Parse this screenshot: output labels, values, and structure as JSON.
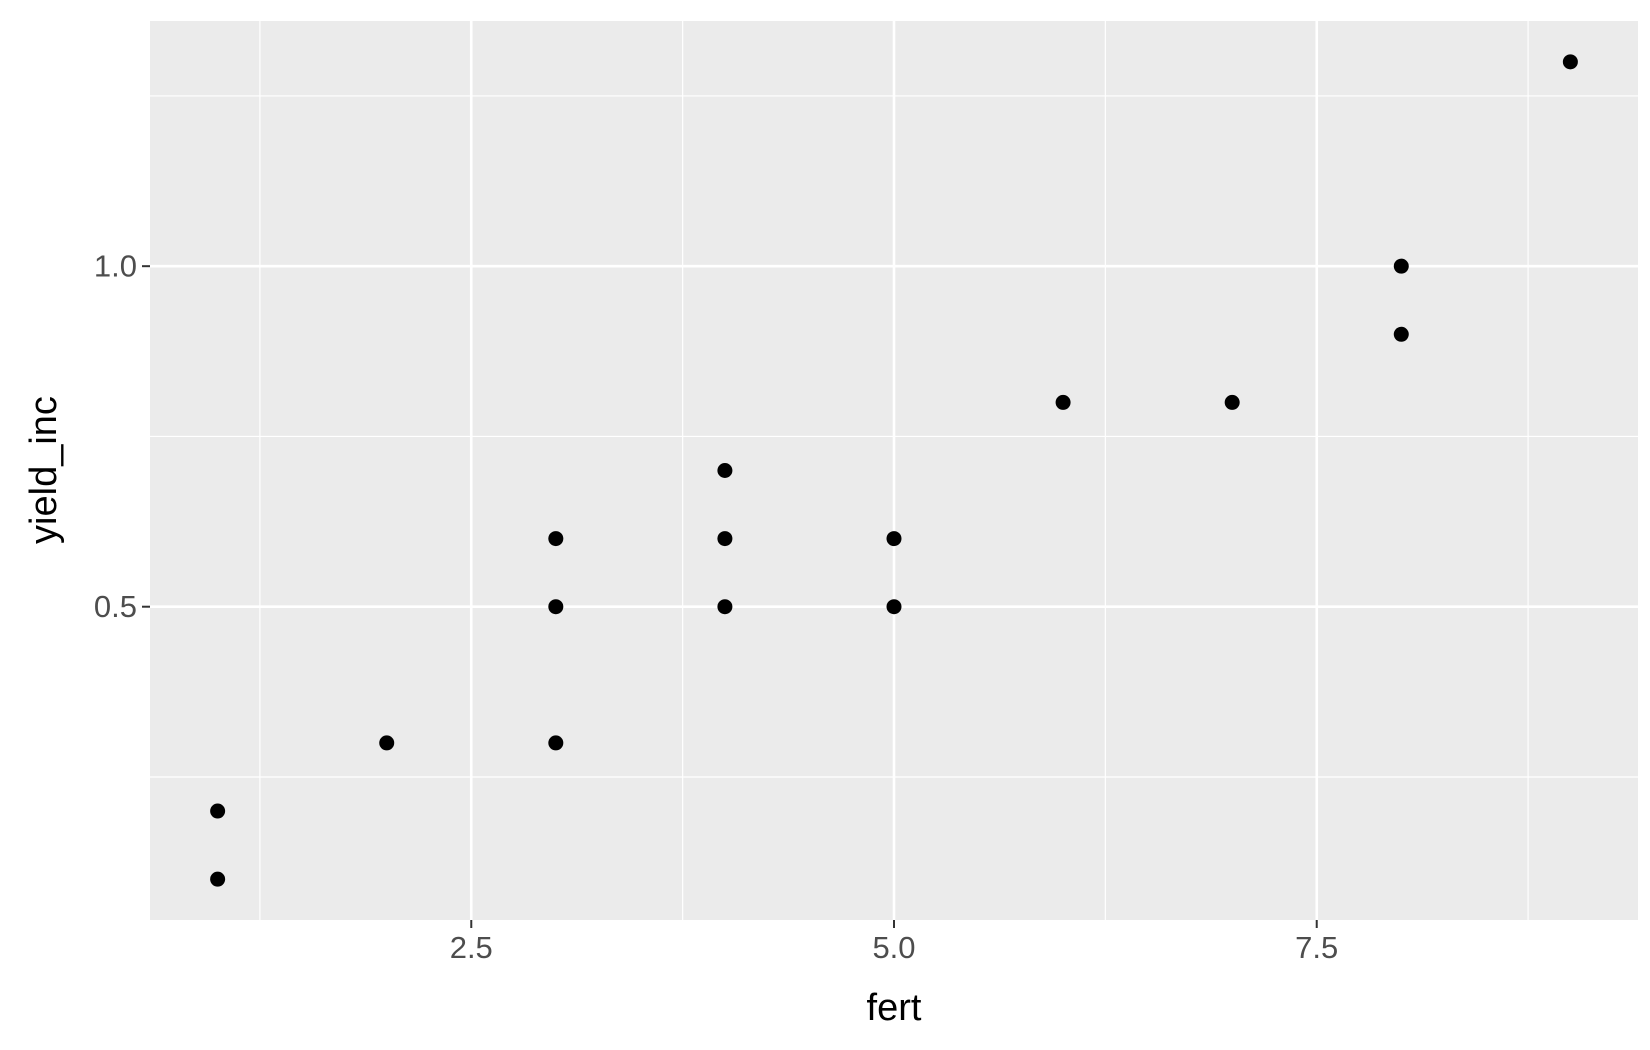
{
  "chart_data": {
    "type": "scatter",
    "x_label": "fert",
    "y_label": "yield_inc",
    "series": [
      {
        "color": "#000000",
        "x": [
          1,
          1,
          2,
          3,
          3,
          3,
          4,
          4,
          4,
          5,
          5,
          6,
          7,
          8,
          8,
          9
        ],
        "values": [
          0.2,
          0.1,
          0.3,
          0.6,
          0.5,
          0.3,
          0.7,
          0.6,
          0.5,
          0.6,
          0.5,
          0.8,
          0.8,
          1.0,
          0.9,
          1.3
        ]
      }
    ],
    "xlim": [
      0.6,
      9.4
    ],
    "ylim": [
      0.04,
      1.36
    ],
    "xticks": [
      {
        "value": 2.5,
        "label": "2.5"
      },
      {
        "value": 5,
        "label": "5.0"
      },
      {
        "value": 7.5,
        "label": "7.5"
      }
    ],
    "yticks": [
      {
        "value": 0.5,
        "label": "0.5"
      },
      {
        "value": 1,
        "label": "1.0"
      }
    ],
    "grid": true
  }
}
